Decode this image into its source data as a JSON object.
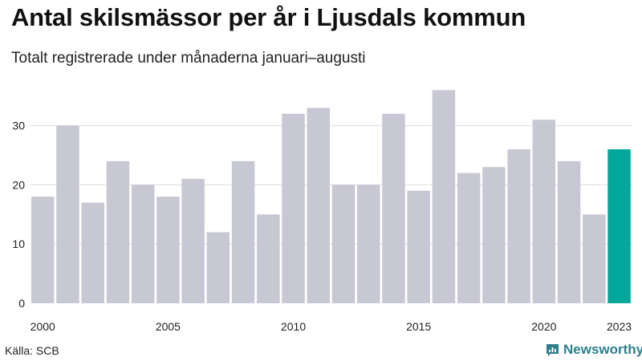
{
  "title": "Antal skilsmässor per år i Ljusdals kommun",
  "subtitle": "Totalt registrerade under månaderna januari–augusti",
  "source": "Källa: SCB",
  "brand": "Newsworthy",
  "colors": {
    "bar": "#c8c7d4",
    "highlight": "#00a79a",
    "grid": "#dddddd",
    "brand": "#2e7f8c"
  },
  "chart_data": {
    "type": "bar",
    "x": [
      2000,
      2001,
      2002,
      2003,
      2004,
      2005,
      2006,
      2007,
      2008,
      2009,
      2010,
      2011,
      2012,
      2013,
      2014,
      2015,
      2016,
      2017,
      2018,
      2019,
      2020,
      2021,
      2022,
      2023
    ],
    "values": [
      18,
      30,
      17,
      24,
      20,
      18,
      21,
      12,
      24,
      15,
      32,
      33,
      20,
      20,
      32,
      19,
      36,
      22,
      23,
      26,
      31,
      24,
      15,
      26
    ],
    "highlight": 2023,
    "xticks": [
      "2000",
      "2005",
      "2010",
      "2015",
      "2020",
      "2023"
    ],
    "yticks": [
      "0",
      "10",
      "20",
      "30"
    ],
    "ylim": [
      0,
      37
    ],
    "grid": true,
    "legend": "none",
    "xlabel": "",
    "ylabel": ""
  }
}
